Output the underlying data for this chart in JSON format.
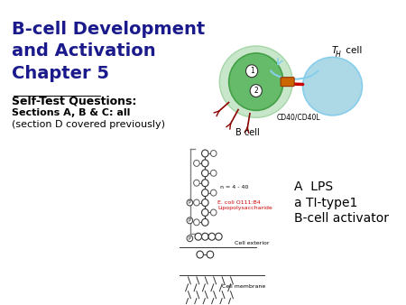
{
  "background_color": "#ffffff",
  "title_line1": "B-cell Development",
  "title_line2": "and Activation",
  "title_line3": "Chapter 5",
  "title_color": "#1a1a8c",
  "title_fontsize": 14,
  "subtitle": "Self-Test Questions:",
  "subtitle_fontsize": 9,
  "subtitle_bold": true,
  "body_line1": "Sections A, B & C: all",
  "body_line2": "(section D covered previously)",
  "body_fontsize": 8,
  "lps_text_line1": "A  LPS",
  "lps_text_line2": "a TI-type1",
  "lps_text_line3": "B-cell activator",
  "lps_fontsize": 10,
  "th_cell_label": "T",
  "th_subscript": "H",
  "th_cell_suffix": " cell",
  "b_cell_label": "B cell",
  "cd40_label": "CD40/CD40L",
  "image_top_path": "bcell_diagram_top",
  "image_bottom_path": "lps_diagram"
}
